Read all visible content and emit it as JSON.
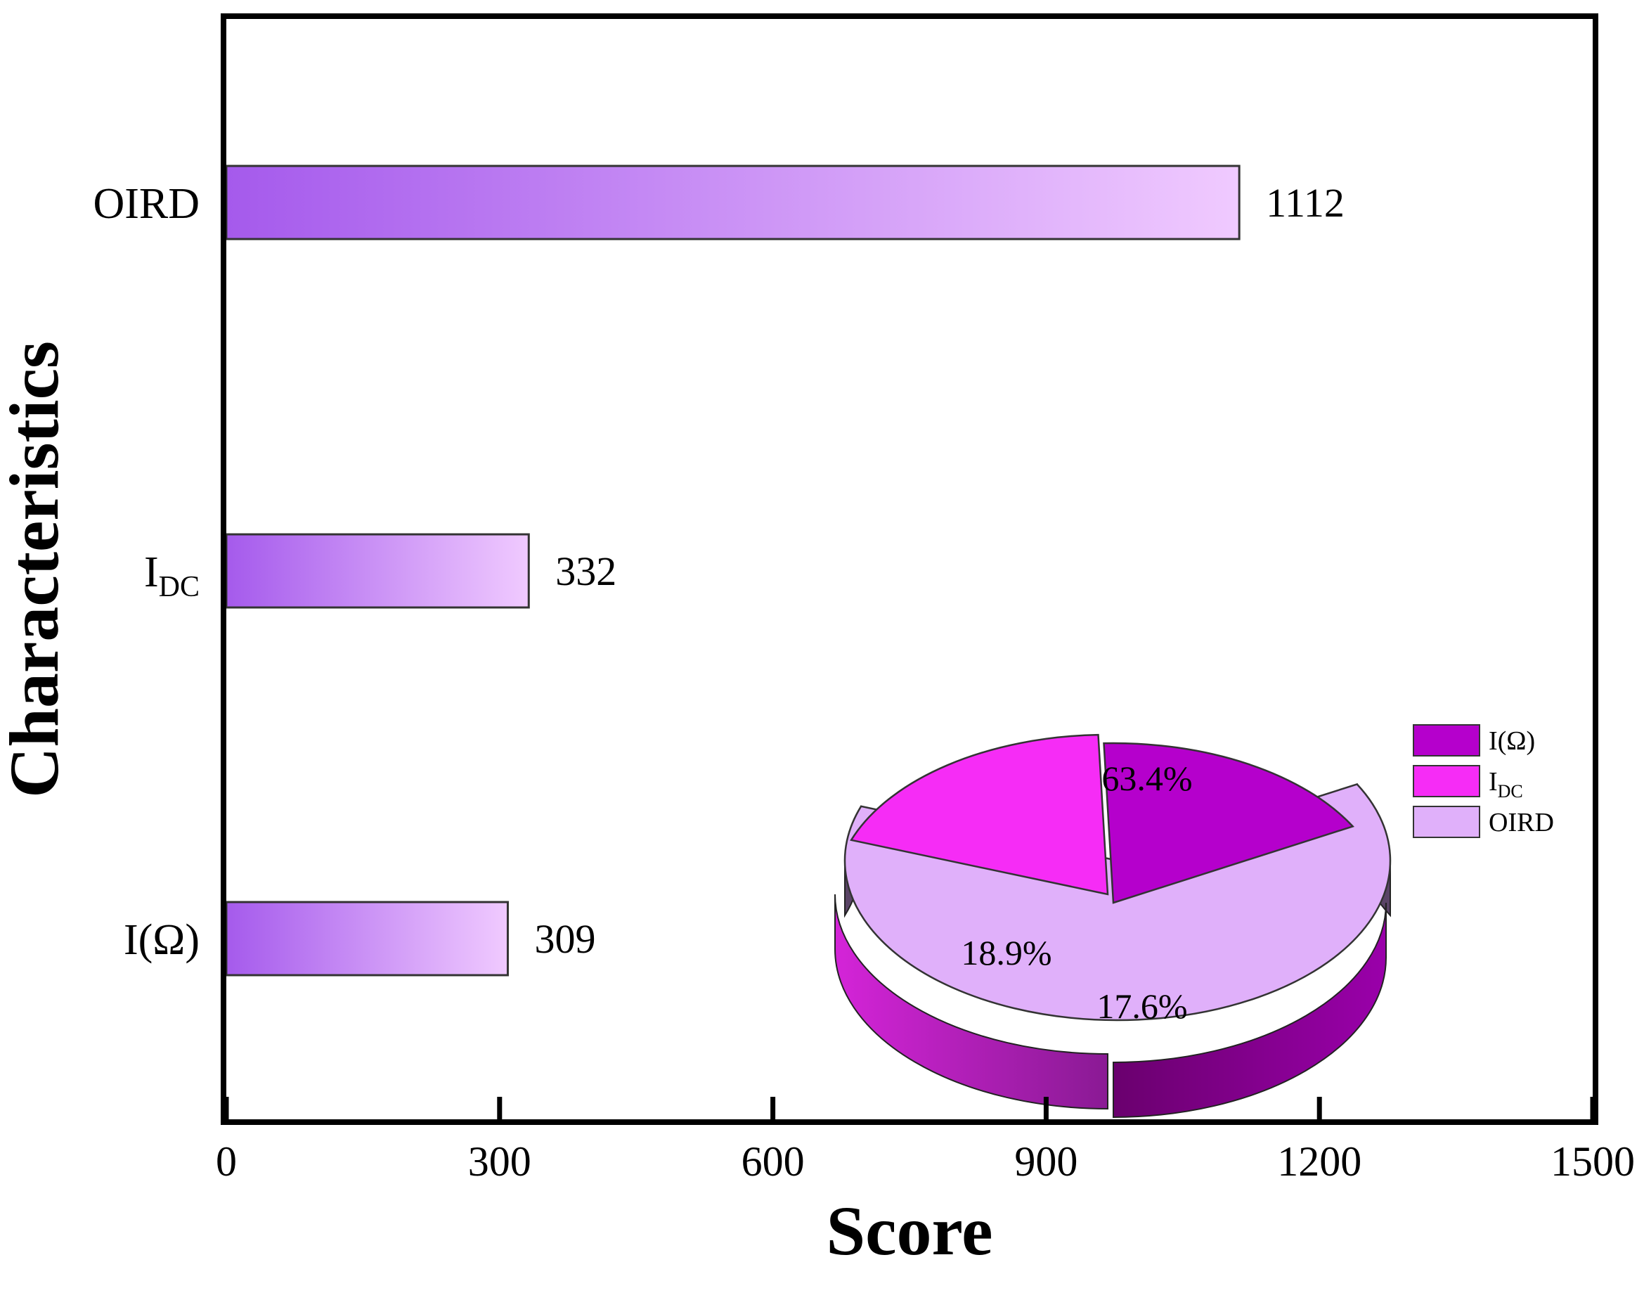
{
  "chart_data": [
    {
      "type": "bar",
      "orientation": "horizontal",
      "categories": [
        "I(Ω)",
        "I_DC",
        "OIRD"
      ],
      "category_display": [
        {
          "main": "I(Ω)",
          "sub": ""
        },
        {
          "main": "I",
          "sub": "DC"
        },
        {
          "main": "OIRD",
          "sub": ""
        }
      ],
      "values": [
        309,
        332,
        1112
      ],
      "value_labels": [
        "309",
        "332",
        "1112"
      ],
      "xlabel": "Score",
      "ylabel": "Characteristics",
      "xlim": [
        0,
        1500
      ],
      "xticks": [
        0,
        300,
        600,
        900,
        1200,
        1500
      ],
      "xtick_labels": [
        "0",
        "300",
        "600",
        "900",
        "1200",
        "1500"
      ],
      "bar_gradient": [
        "#a55aec",
        "#f0caff"
      ],
      "grid": false
    },
    {
      "type": "pie",
      "style": "3d",
      "labels": [
        "I(Ω)",
        "I_DC",
        "OIRD"
      ],
      "values": [
        17.6,
        18.9,
        63.4
      ],
      "value_labels": [
        "17.6%",
        "18.9%",
        "63.4%"
      ],
      "colors": [
        "#b500cc",
        "#f62cf6",
        "#e0b0fa"
      ],
      "legend": {
        "position": "right",
        "entries": [
          {
            "main": "I(Ω)",
            "sub": ""
          },
          {
            "main": "I",
            "sub": "DC"
          },
          {
            "main": "OIRD",
            "sub": ""
          }
        ]
      }
    }
  ]
}
